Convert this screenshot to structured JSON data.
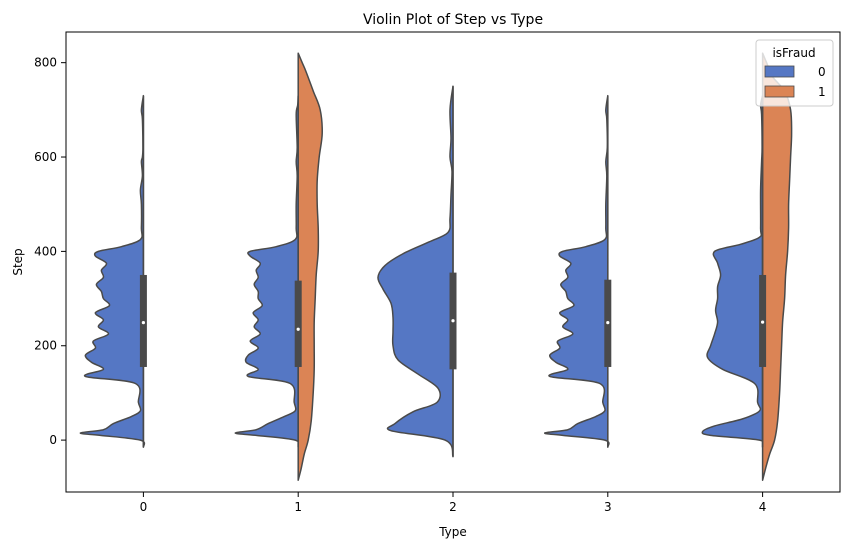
{
  "chart_data": {
    "type": "violin",
    "title": "Violin Plot of Step vs Type",
    "xlabel": "Type",
    "ylabel": "Step",
    "categories": [
      "0",
      "1",
      "2",
      "3",
      "4"
    ],
    "y_ticks": [
      0,
      200,
      400,
      600,
      800
    ],
    "ylim": [
      -110,
      865
    ],
    "grid": false,
    "split": true,
    "legend": {
      "title": "isFraud",
      "placement": "top-right",
      "entries": [
        {
          "label": "0",
          "color": "#5577c4"
        },
        {
          "label": "1",
          "color": "#db8455"
        }
      ]
    },
    "series": [
      {
        "name": "0",
        "color": "#5577c4",
        "side": "left",
        "violins": [
          {
            "category": "0",
            "median": 249,
            "q1": 155,
            "q3": 350,
            "profile": [
              [
                -15,
                0
              ],
              [
                0,
                3
              ],
              [
                10,
                43
              ],
              [
                15,
                63
              ],
              [
                22,
                40
              ],
              [
                35,
                30
              ],
              [
                50,
                12
              ],
              [
                62,
                3
              ],
              [
                80,
                5
              ],
              [
                120,
                8
              ],
              [
                135,
                58
              ],
              [
                150,
                40
              ],
              [
                165,
                52
              ],
              [
                180,
                58
              ],
              [
                195,
                48
              ],
              [
                210,
                50
              ],
              [
                225,
                35
              ],
              [
                240,
                45
              ],
              [
                255,
                40
              ],
              [
                270,
                48
              ],
              [
                285,
                34
              ],
              [
                300,
                40
              ],
              [
                315,
                42
              ],
              [
                330,
                47
              ],
              [
                345,
                40
              ],
              [
                360,
                42
              ],
              [
                375,
                37
              ],
              [
                390,
                48
              ],
              [
                400,
                45
              ],
              [
                410,
                22
              ],
              [
                425,
                3
              ],
              [
                450,
                2
              ],
              [
                500,
                2
              ],
              [
                530,
                3
              ],
              [
                560,
                1
              ],
              [
                590,
                2
              ],
              [
                600,
                1
              ],
              [
                620,
                0.5
              ],
              [
                680,
                1
              ],
              [
                700,
                2
              ],
              [
                730,
                0
              ]
            ]
          },
          {
            "category": "1",
            "median": 235,
            "q1": 155,
            "q3": 338,
            "profile": [
              [
                -15,
                0
              ],
              [
                0,
                3
              ],
              [
                10,
                42
              ],
              [
                15,
                63
              ],
              [
                22,
                42
              ],
              [
                35,
                30
              ],
              [
                50,
                14
              ],
              [
                62,
                3
              ],
              [
                80,
                4
              ],
              [
                120,
                8
              ],
              [
                135,
                50
              ],
              [
                150,
                40
              ],
              [
                165,
                52
              ],
              [
                180,
                50
              ],
              [
                195,
                40
              ],
              [
                210,
                48
              ],
              [
                225,
                38
              ],
              [
                240,
                44
              ],
              [
                255,
                40
              ],
              [
                270,
                45
              ],
              [
                285,
                36
              ],
              [
                300,
                40
              ],
              [
                315,
                40
              ],
              [
                330,
                44
              ],
              [
                345,
                40
              ],
              [
                360,
                42
              ],
              [
                375,
                38
              ],
              [
                390,
                48
              ],
              [
                400,
                48
              ],
              [
                410,
                22
              ],
              [
                425,
                3
              ],
              [
                450,
                2
              ],
              [
                500,
                2
              ],
              [
                560,
                1
              ],
              [
                590,
                2
              ],
              [
                620,
                1
              ],
              [
                690,
                2
              ],
              [
                710,
                0.5
              ],
              [
                730,
                0
              ]
            ]
          },
          {
            "category": "2",
            "median": 253,
            "q1": 150,
            "q3": 355,
            "profile": [
              [
                -35,
                0
              ],
              [
                0,
                8
              ],
              [
                20,
                62
              ],
              [
                35,
                58
              ],
              [
                60,
                40
              ],
              [
                80,
                16
              ],
              [
                110,
                15
              ],
              [
                140,
                35
              ],
              [
                170,
                55
              ],
              [
                200,
                60
              ],
              [
                230,
                60
              ],
              [
                260,
                60
              ],
              [
                290,
                62
              ],
              [
                320,
                70
              ],
              [
                345,
                75
              ],
              [
                370,
                68
              ],
              [
                395,
                50
              ],
              [
                420,
                24
              ],
              [
                440,
                5
              ],
              [
                470,
                3
              ],
              [
                520,
                2
              ],
              [
                570,
                1
              ],
              [
                600,
                3
              ],
              [
                640,
                2
              ],
              [
                700,
                3
              ],
              [
                750,
                0
              ]
            ]
          },
          {
            "category": "3",
            "median": 249,
            "q1": 155,
            "q3": 340,
            "profile": [
              [
                -15,
                0
              ],
              [
                0,
                3
              ],
              [
                10,
                45
              ],
              [
                15,
                63
              ],
              [
                22,
                40
              ],
              [
                35,
                30
              ],
              [
                50,
                12
              ],
              [
                62,
                3
              ],
              [
                80,
                5
              ],
              [
                120,
                8
              ],
              [
                135,
                58
              ],
              [
                150,
                40
              ],
              [
                165,
                52
              ],
              [
                180,
                58
              ],
              [
                195,
                48
              ],
              [
                210,
                50
              ],
              [
                225,
                35
              ],
              [
                240,
                45
              ],
              [
                255,
                40
              ],
              [
                270,
                48
              ],
              [
                285,
                34
              ],
              [
                300,
                40
              ],
              [
                315,
                42
              ],
              [
                330,
                47
              ],
              [
                345,
                40
              ],
              [
                360,
                42
              ],
              [
                375,
                37
              ],
              [
                390,
                48
              ],
              [
                400,
                45
              ],
              [
                410,
                22
              ],
              [
                425,
                3
              ],
              [
                450,
                2
              ],
              [
                500,
                2
              ],
              [
                560,
                1
              ],
              [
                590,
                2
              ],
              [
                620,
                0.5
              ],
              [
                680,
                1
              ],
              [
                700,
                2
              ],
              [
                730,
                0
              ]
            ]
          },
          {
            "category": "4",
            "median": 250,
            "q1": 155,
            "q3": 350,
            "profile": [
              [
                -15,
                0
              ],
              [
                0,
                3
              ],
              [
                10,
                52
              ],
              [
                18,
                60
              ],
              [
                30,
                48
              ],
              [
                45,
                20
              ],
              [
                62,
                3
              ],
              [
                80,
                5
              ],
              [
                120,
                8
              ],
              [
                150,
                40
              ],
              [
                175,
                55
              ],
              [
                200,
                52
              ],
              [
                225,
                48
              ],
              [
                250,
                45
              ],
              [
                275,
                47
              ],
              [
                300,
                45
              ],
              [
                325,
                45
              ],
              [
                350,
                42
              ],
              [
                375,
                45
              ],
              [
                400,
                48
              ],
              [
                415,
                22
              ],
              [
                430,
                3
              ],
              [
                450,
                2
              ],
              [
                530,
                2
              ],
              [
                590,
                1
              ],
              [
                620,
                0.5
              ],
              [
                690,
                1
              ],
              [
                710,
                2
              ],
              [
                730,
                0
              ]
            ]
          }
        ]
      },
      {
        "name": "1",
        "color": "#db8455",
        "side": "right",
        "violins": [
          {
            "category": "1",
            "profile": [
              [
                -85,
                0
              ],
              [
                -60,
                3
              ],
              [
                -30,
                6
              ],
              [
                0,
                10
              ],
              [
                40,
                13
              ],
              [
                100,
                15
              ],
              [
                150,
                16
              ],
              [
                200,
                16
              ],
              [
                250,
                16
              ],
              [
                300,
                17
              ],
              [
                350,
                18
              ],
              [
                400,
                20
              ],
              [
                450,
                20
              ],
              [
                500,
                19
              ],
              [
                550,
                19
              ],
              [
                600,
                21
              ],
              [
                650,
                24
              ],
              [
                700,
                22
              ],
              [
                740,
                15
              ],
              [
                780,
                8
              ],
              [
                800,
                4
              ],
              [
                820,
                0
              ]
            ]
          },
          {
            "category": "4",
            "profile": [
              [
                -85,
                0
              ],
              [
                -60,
                3
              ],
              [
                -30,
                7
              ],
              [
                0,
                12
              ],
              [
                40,
                15
              ],
              [
                100,
                17
              ],
              [
                150,
                18
              ],
              [
                200,
                19
              ],
              [
                250,
                20
              ],
              [
                300,
                22
              ],
              [
                350,
                23
              ],
              [
                400,
                25
              ],
              [
                450,
                26
              ],
              [
                500,
                26
              ],
              [
                550,
                27
              ],
              [
                600,
                28
              ],
              [
                650,
                29
              ],
              [
                700,
                28
              ],
              [
                740,
                22
              ],
              [
                770,
                10
              ],
              [
                800,
                4
              ],
              [
                820,
                0
              ]
            ]
          }
        ]
      }
    ]
  }
}
